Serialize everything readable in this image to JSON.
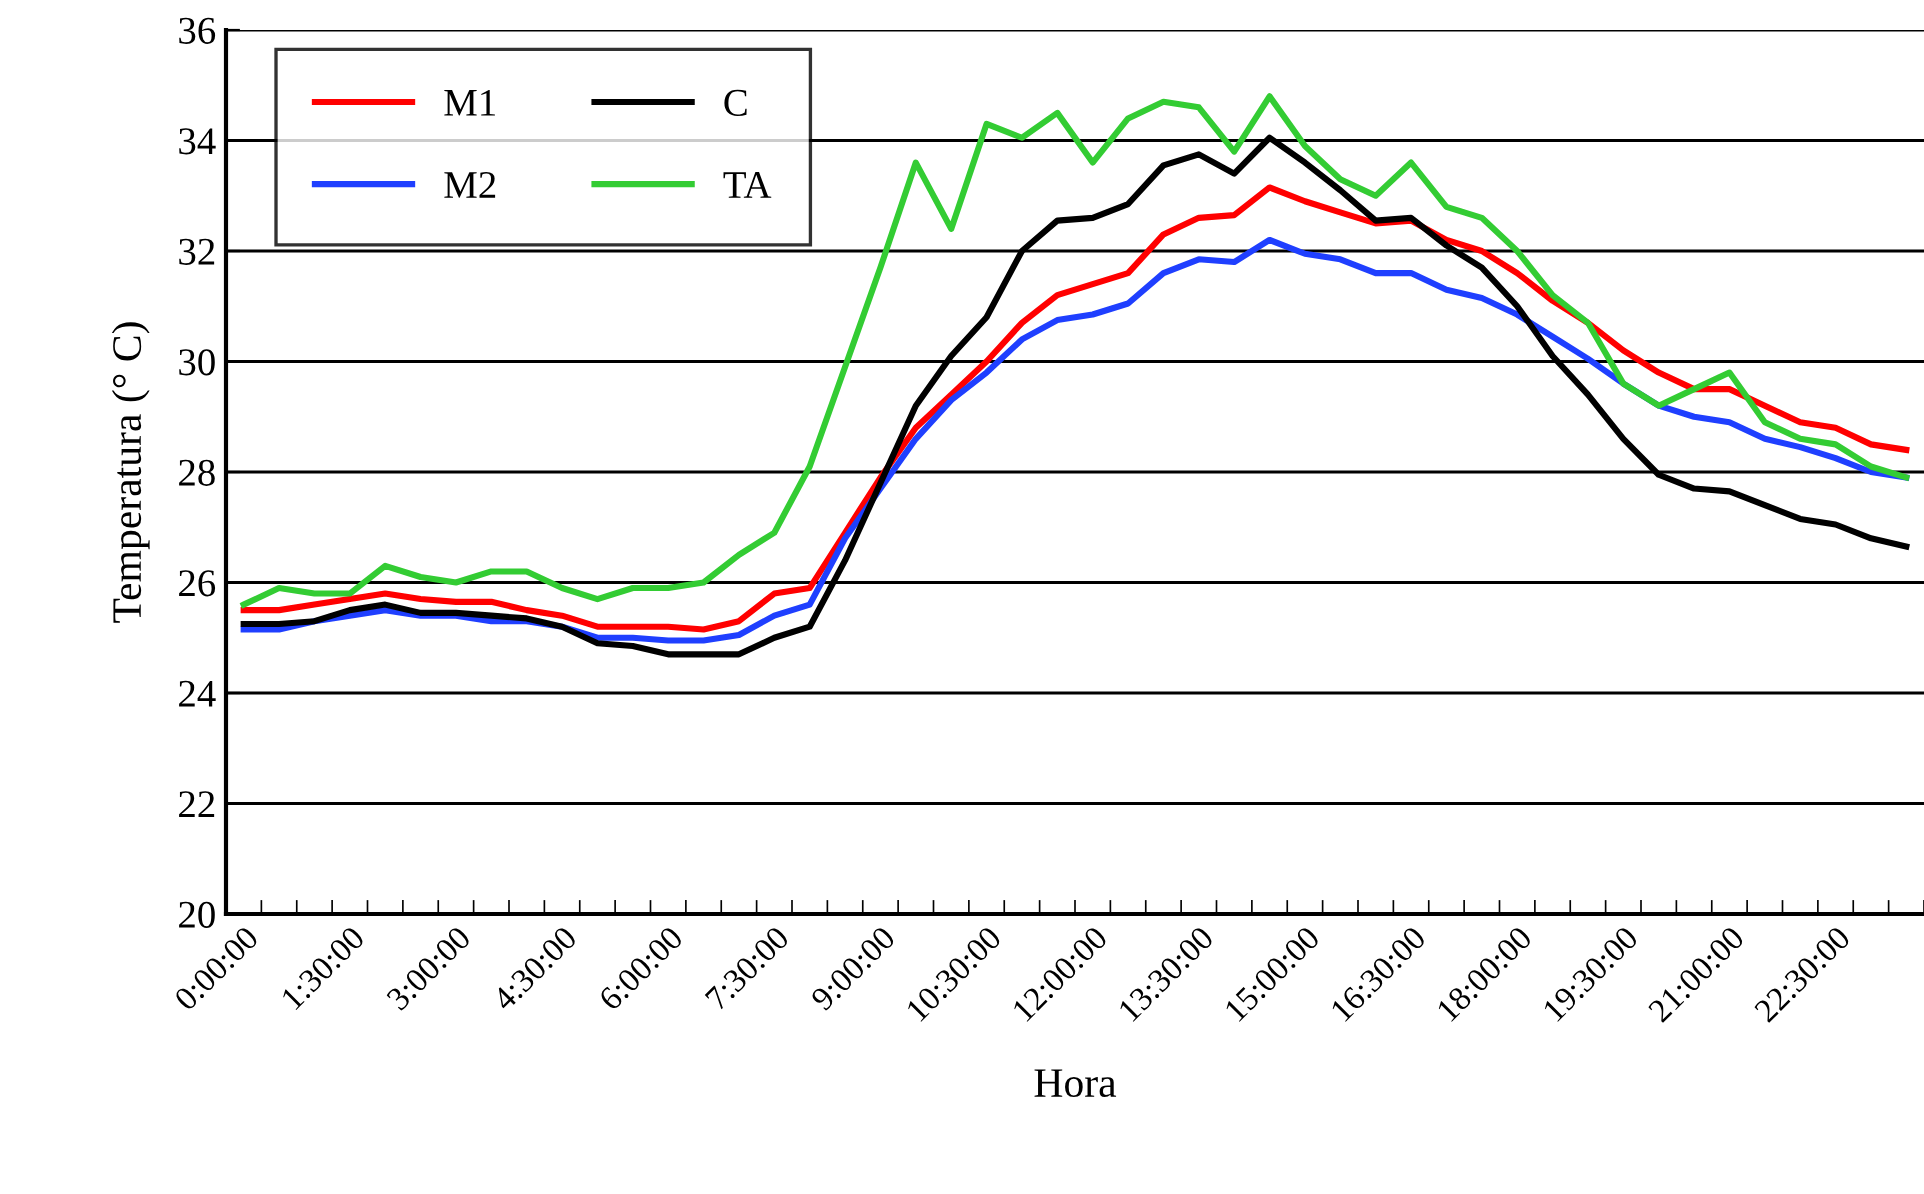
{
  "chart_data": {
    "type": "line",
    "xlabel": "Hora",
    "ylabel": "Temperatura (° C)",
    "categories": [
      "0:00:00",
      null,
      null,
      "1:30:00",
      null,
      null,
      "3:00:00",
      null,
      null,
      "4:30:00",
      null,
      null,
      "6:00:00",
      null,
      null,
      "7:30:00",
      null,
      null,
      "9:00:00",
      null,
      null,
      "10:30:00",
      null,
      null,
      "12:00:00",
      null,
      null,
      "13:30:00",
      null,
      null,
      "15:00:00",
      null,
      null,
      "16:30:00",
      null,
      null,
      "18:00:00",
      null,
      null,
      "19:30:00",
      null,
      null,
      "21:00:00",
      null,
      null,
      "22:30:00",
      null,
      null
    ],
    "series": [
      {
        "name": "M1",
        "color": "#ff0000",
        "values": [
          25.5,
          25.5,
          25.6,
          25.7,
          25.8,
          25.7,
          25.65,
          25.65,
          25.5,
          25.4,
          25.2,
          25.2,
          25.2,
          25.15,
          25.3,
          25.8,
          25.9,
          26.9,
          27.9,
          28.8,
          29.4,
          30.0,
          30.7,
          31.2,
          31.4,
          31.6,
          32.3,
          32.6,
          32.65,
          33.15,
          32.9,
          32.7,
          32.5,
          32.55,
          32.2,
          32.0,
          31.6,
          31.1,
          30.7,
          30.2,
          29.8,
          29.5,
          29.5,
          29.2,
          28.9,
          28.8,
          28.5,
          28.4
        ]
      },
      {
        "name": "M2",
        "color": "#1f3fff",
        "values": [
          25.15,
          25.15,
          25.3,
          25.4,
          25.5,
          25.4,
          25.4,
          25.3,
          25.3,
          25.2,
          25.0,
          25.0,
          24.95,
          24.95,
          25.05,
          25.4,
          25.6,
          26.8,
          27.7,
          28.6,
          29.3,
          29.8,
          30.4,
          30.75,
          30.85,
          31.05,
          31.6,
          31.85,
          31.8,
          32.2,
          31.95,
          31.85,
          31.6,
          31.6,
          31.3,
          31.15,
          30.85,
          30.45,
          30.05,
          29.6,
          29.2,
          29.0,
          28.9,
          28.6,
          28.45,
          28.25,
          28.0,
          27.9
        ]
      },
      {
        "name": "C",
        "color": "#000000",
        "values": [
          25.25,
          25.25,
          25.3,
          25.5,
          25.6,
          25.45,
          25.45,
          25.4,
          25.35,
          25.2,
          24.9,
          24.85,
          24.7,
          24.7,
          24.7,
          25.0,
          25.2,
          26.4,
          27.8,
          29.2,
          30.1,
          30.8,
          32.0,
          32.55,
          32.6,
          32.85,
          33.55,
          33.75,
          33.4,
          34.05,
          33.6,
          33.1,
          32.55,
          32.6,
          32.1,
          31.7,
          31.0,
          30.1,
          29.4,
          28.6,
          27.95,
          27.7,
          27.65,
          27.4,
          27.15,
          27.05,
          26.8,
          26.65
        ]
      },
      {
        "name": "TA",
        "color": "#33cc33",
        "values": [
          25.6,
          25.9,
          25.8,
          25.8,
          26.3,
          26.1,
          26.0,
          26.2,
          26.2,
          25.9,
          25.7,
          25.9,
          25.9,
          26.0,
          26.5,
          26.9,
          28.1,
          29.9,
          31.7,
          33.6,
          32.4,
          34.3,
          34.05,
          34.5,
          33.6,
          34.4,
          34.7,
          34.6,
          33.8,
          34.8,
          33.9,
          33.3,
          33.0,
          33.6,
          32.8,
          32.6,
          32.0,
          31.2,
          30.7,
          29.6,
          29.2,
          29.5,
          29.8,
          28.9,
          28.6,
          28.5,
          28.1,
          27.9
        ]
      }
    ],
    "ylim": [
      20,
      36
    ],
    "yticks": [
      20,
      22,
      24,
      26,
      28,
      30,
      32,
      34,
      36
    ],
    "grid": "y",
    "legend": "top left",
    "marker": "none",
    "line_style": "solid"
  }
}
